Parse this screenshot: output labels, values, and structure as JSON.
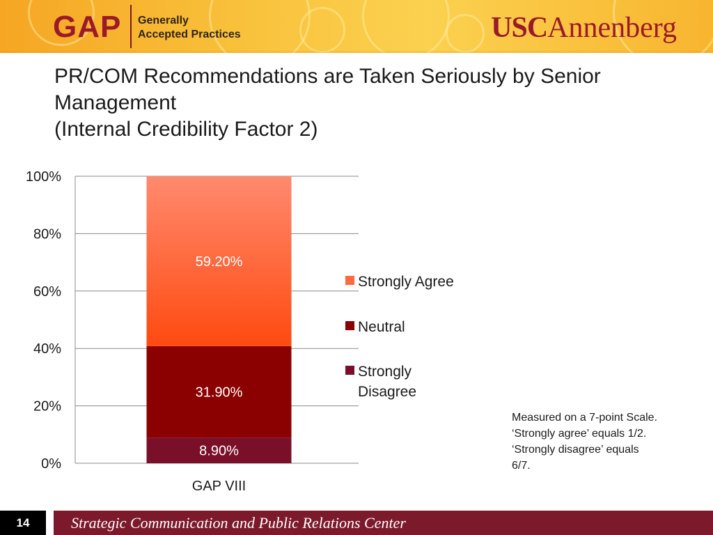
{
  "header": {
    "gap_logo": "GAP",
    "tagline_line1": "Generally",
    "tagline_line2": "Accepted Practices",
    "usc_logo_usc": "USC",
    "usc_logo_annenberg": "Annenberg"
  },
  "title": {
    "line1": "PR/COM Recommendations are Taken Seriously by Senior",
    "line2": "Management",
    "line3": "(Internal Credibility Factor 2)"
  },
  "chart_data": {
    "type": "bar",
    "stacked": true,
    "categories": [
      "GAP VIII"
    ],
    "series": [
      {
        "name": "Strongly Disagree",
        "values": [
          8.9
        ],
        "label": "8.90%",
        "color": "#7a0f2a"
      },
      {
        "name": "Neutral",
        "values": [
          31.9
        ],
        "label": "31.90%",
        "color": "#8b0000"
      },
      {
        "name": "Strongly Agree",
        "values": [
          59.2
        ],
        "label": "59.20%",
        "color": "#ff5a2a"
      }
    ],
    "legend_order": [
      "Strongly Agree",
      "Neutral",
      "Strongly Disagree"
    ],
    "legend_placement": "right",
    "ylim": [
      0,
      100
    ],
    "yticks": [
      "0%",
      "20%",
      "40%",
      "60%",
      "80%",
      "100%"
    ],
    "grid": true,
    "xlabel": "",
    "ylabel": ""
  },
  "note": "Measured on a 7-point Scale. ‘Strongly agree’ equals 1/2.  ‘Strongly disagree’ equals 6/7.",
  "footer": {
    "page_number": "14",
    "text": "Strategic Communication and Public Relations Center"
  }
}
